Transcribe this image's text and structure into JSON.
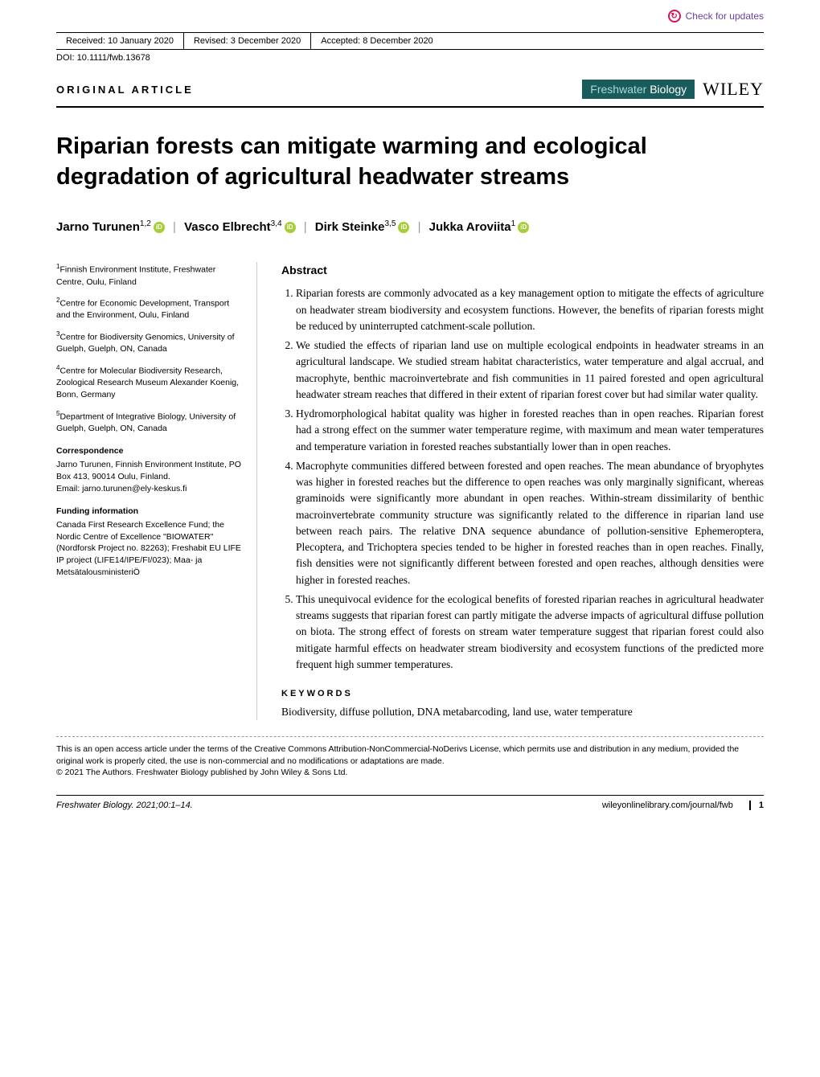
{
  "check_updates": "Check for updates",
  "header": {
    "received_label": "Received:",
    "received_date": "10 January 2020",
    "revised_label": "Revised:",
    "revised_date": "3 December 2020",
    "accepted_label": "Accepted:",
    "accepted_date": "8 December 2020"
  },
  "doi": "DOI: 10.1111/fwb.13678",
  "article_type": "ORIGINAL ARTICLE",
  "journal": {
    "fresh": "Freshwater",
    "bio": "Biology",
    "publisher": "WILEY"
  },
  "title": "Riparian forests can mitigate warming and ecological degradation of agricultural headwater streams",
  "authors": {
    "a1": "Jarno Turunen",
    "a1_sup": "1,2",
    "a2": "Vasco Elbrecht",
    "a2_sup": "3,4",
    "a3": "Dirk Steinke",
    "a3_sup": "3,5",
    "a4": "Jukka Aroviita",
    "a4_sup": "1"
  },
  "affiliations": {
    "af1": "Finnish Environment Institute, Freshwater Centre, Oulu, Finland",
    "af2": "Centre for Economic Development, Transport and the Environment, Oulu, Finland",
    "af3": "Centre for Biodiversity Genomics, University of Guelph, Guelph, ON, Canada",
    "af4": "Centre for Molecular Biodiversity Research, Zoological Research Museum Alexander Koenig, Bonn, Germany",
    "af5": "Department of Integrative Biology, University of Guelph, Guelph, ON, Canada"
  },
  "correspondence": {
    "head": "Correspondence",
    "text": "Jarno Turunen, Finnish Environment Institute, PO Box 413, 90014 Oulu, Finland.",
    "email_label": "Email:",
    "email": "jarno.turunen@ely-keskus.fi"
  },
  "funding": {
    "head": "Funding information",
    "text": "Canada First Research Excellence Fund; the Nordic Centre of Excellence \"BIOWATER\" (Nordforsk Project no. 82263); Freshabit EU LIFE IP project (LIFE14/IPE/FI/023); Maa- ja MetsätalousministeriÖ"
  },
  "abstract": {
    "head": "Abstract",
    "items": [
      "Riparian forests are commonly advocated as a key management option to mitigate the effects of agriculture on headwater stream biodiversity and ecosystem functions. However, the benefits of riparian forests might be reduced by uninterrupted catchment-scale pollution.",
      "We studied the effects of riparian land use on multiple ecological endpoints in headwater streams in an agricultural landscape. We studied stream habitat characteristics, water temperature and algal accrual, and macrophyte, benthic macroinvertebrate and fish communities in 11 paired forested and open agricultural headwater stream reaches that differed in their extent of riparian forest cover but had similar water quality.",
      "Hydromorphological habitat quality was higher in forested reaches than in open reaches. Riparian forest had a strong effect on the summer water temperature regime, with maximum and mean water temperatures and temperature variation in forested reaches substantially lower than in open reaches.",
      "Macrophyte communities differed between forested and open reaches. The mean abundance of bryophytes was higher in forested reaches but the difference to open reaches was only marginally significant, whereas graminoids were significantly more abundant in open reaches. Within-stream dissimilarity of benthic macroinvertebrate community structure was significantly related to the difference in riparian land use between reach pairs. The relative DNA sequence abundance of pollution-sensitive Ephemeroptera, Plecoptera, and Trichoptera species tended to be higher in forested reaches than in open reaches. Finally, fish densities were not significantly different between forested and open reaches, although densities were higher in forested reaches.",
      "This unequivocal evidence for the ecological benefits of forested riparian reaches in agricultural headwater streams suggests that riparian forest can partly mitigate the adverse impacts of agricultural diffuse pollution on biota. The strong effect of forests on stream water temperature suggest that riparian forest could also mitigate harmful effects on headwater stream biodiversity and ecosystem functions of the predicted more frequent high summer temperatures."
    ]
  },
  "keywords": {
    "head": "KEYWORDS",
    "text": "Biodiversity, diffuse pollution, DNA metabarcoding, land use, water temperature"
  },
  "license": {
    "line1": "This is an open access article under the terms of the Creative Commons Attribution-NonCommercial-NoDerivs License, which permits use and distribution in any medium, provided the original work is properly cited, the use is non-commercial and no modifications or adaptations are made.",
    "line2": "© 2021 The Authors. Freshwater Biology published by John Wiley & Sons Ltd."
  },
  "footer": {
    "citation": "Freshwater Biology. 2021;00:1–14.",
    "url": "wileyonlinelibrary.com/journal/fwb",
    "page": "1"
  },
  "colors": {
    "journal_bg": "#1a5c5c",
    "journal_light": "#a8d8d8",
    "orcid": "#a6ce39",
    "updates_purple": "#6b3fa0",
    "updates_red": "#d4145a"
  }
}
